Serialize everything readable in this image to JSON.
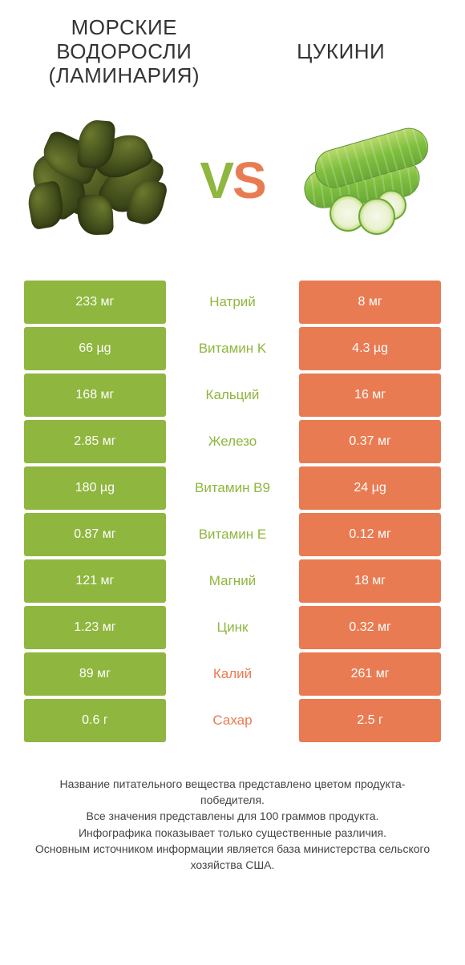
{
  "colors": {
    "green": "#8fb63e",
    "orange": "#e97b52",
    "mid_green_text": "#8fb63e",
    "mid_orange_text": "#e97b52",
    "bg": "#ffffff"
  },
  "titles": {
    "left": "МОРСКИЕ ВОДОРОСЛИ (ЛАМИНАРИЯ)",
    "right": "ЦУКИНИ"
  },
  "vs": {
    "v": "V",
    "s": "S"
  },
  "rows": [
    {
      "left": "233 мг",
      "mid": "Натрий",
      "right": "8 мг",
      "winner": "left"
    },
    {
      "left": "66 µg",
      "mid": "Витамин K",
      "right": "4.3 µg",
      "winner": "left"
    },
    {
      "left": "168 мг",
      "mid": "Кальций",
      "right": "16 мг",
      "winner": "left"
    },
    {
      "left": "2.85 мг",
      "mid": "Железо",
      "right": "0.37 мг",
      "winner": "left"
    },
    {
      "left": "180 µg",
      "mid": "Витамин B9",
      "right": "24 µg",
      "winner": "left"
    },
    {
      "left": "0.87 мг",
      "mid": "Витамин E",
      "right": "0.12 мг",
      "winner": "left"
    },
    {
      "left": "121 мг",
      "mid": "Магний",
      "right": "18 мг",
      "winner": "left"
    },
    {
      "left": "1.23 мг",
      "mid": "Цинк",
      "right": "0.32 мг",
      "winner": "left"
    },
    {
      "left": "89 мг",
      "mid": "Калий",
      "right": "261 мг",
      "winner": "right"
    },
    {
      "left": "0.6 г",
      "mid": "Сахар",
      "right": "2.5 г",
      "winner": "right"
    }
  ],
  "footer": {
    "line1": "Название питательного вещества представлено цветом продукта-победителя.",
    "line2": "Все значения представлены для 100 граммов продукта.",
    "line3": "Инфографика показывает только существенные различия.",
    "line4": "Основным источником информации является база министерства сельского хозяйства США."
  }
}
